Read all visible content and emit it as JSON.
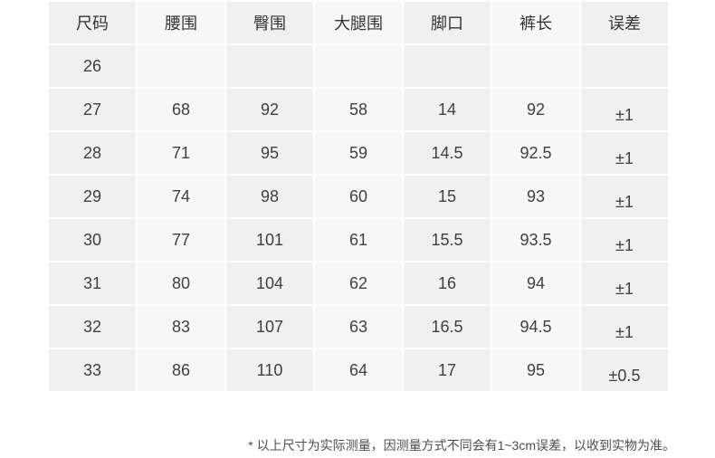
{
  "chart_data": {
    "type": "table",
    "columns": [
      "尺码",
      "腰围",
      "臀围",
      "大腿围",
      "脚口",
      "裤长",
      "误差"
    ],
    "rows": [
      [
        "26",
        "",
        "",
        "",
        "",
        "",
        ""
      ],
      [
        "27",
        "68",
        "92",
        "58",
        "14",
        "92",
        "±1"
      ],
      [
        "28",
        "71",
        "95",
        "59",
        "14.5",
        "92.5",
        "±1"
      ],
      [
        "29",
        "74",
        "98",
        "60",
        "15",
        "93",
        "±1"
      ],
      [
        "30",
        "77",
        "101",
        "61",
        "15.5",
        "93.5",
        "±1"
      ],
      [
        "31",
        "80",
        "104",
        "62",
        "16",
        "94",
        "±1"
      ],
      [
        "32",
        "83",
        "107",
        "63",
        "16.5",
        "94.5",
        "±1"
      ],
      [
        "33",
        "86",
        "110",
        "64",
        "17",
        "95",
        "±0.5"
      ]
    ],
    "legend_position": "none",
    "grid": "cell-gaps-white"
  },
  "footnote": "* 以上尺寸为实际测量，因测量方式不同会有1~3cm误差，以收到实物为准。",
  "colors": {
    "background": "#ffffff",
    "cell_odd": "#f0f0f0",
    "cell_even": "#f7f7f7",
    "header_text": "#333333",
    "cell_text": "#3f3f3f",
    "footnote_text": "#4d4d4d"
  }
}
